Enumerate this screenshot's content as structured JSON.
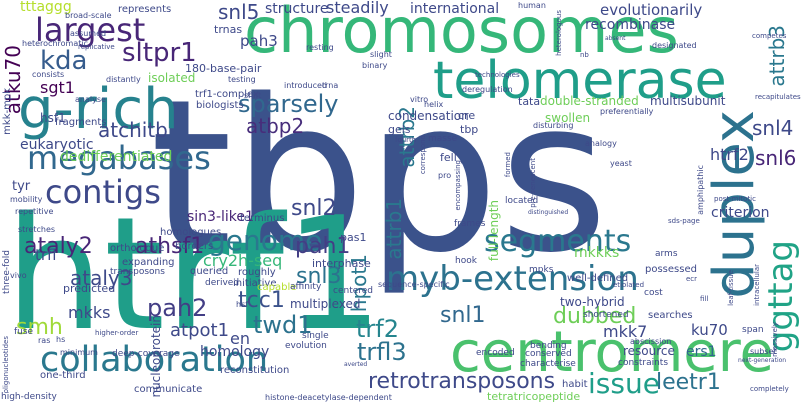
{
  "words": [
    {
      "text": "tbps",
      "color": "#3b528b",
      "orientation": "horizontal"
    },
    {
      "text": "htrf1",
      "color": "#1f9e89",
      "orientation": "horizontal"
    },
    {
      "text": "chromosomes",
      "color": "#35b779",
      "orientation": "horizontal"
    },
    {
      "text": "telomerase",
      "color": "#1f9e89",
      "orientation": "horizontal"
    },
    {
      "text": "g-rich",
      "color": "#26828e",
      "orientation": "horizontal"
    },
    {
      "text": "centromere",
      "color": "#4ac16d",
      "orientation": "horizontal"
    },
    {
      "text": "duplex",
      "color": "#2c728e",
      "orientation": "vertical"
    },
    {
      "text": "collaboration",
      "color": "#2a788e",
      "orientation": "horizontal"
    },
    {
      "text": "megabases",
      "color": "#31688e",
      "orientation": "horizontal"
    },
    {
      "text": "myb-extension",
      "color": "#2c728e",
      "orientation": "horizontal"
    },
    {
      "text": "contigs",
      "color": "#3e4989",
      "orientation": "horizontal"
    },
    {
      "text": "segments",
      "color": "#2a788e",
      "orientation": "horizontal"
    },
    {
      "text": "largest",
      "color": "#482677",
      "orientation": "horizontal"
    },
    {
      "text": "genome",
      "color": "#2a788e",
      "orientation": "horizontal"
    },
    {
      "text": "retrotransposons",
      "color": "#3e4989",
      "orientation": "horizontal"
    },
    {
      "text": "issue",
      "color": "#1f9e89",
      "orientation": "horizontal"
    },
    {
      "text": "ggttag",
      "color": "#20a386",
      "orientation": "vertical"
    },
    {
      "text": "sparsely",
      "color": "#31688e",
      "orientation": "horizontal"
    },
    {
      "text": "sltpr1",
      "color": "#482677",
      "orientation": "horizontal"
    },
    {
      "text": "kda",
      "color": "#365c8d",
      "orientation": "horizontal"
    },
    {
      "text": "atchitb",
      "color": "#3e4989",
      "orientation": "horizontal"
    },
    {
      "text": "ataly2",
      "color": "#482677",
      "orientation": "horizontal"
    },
    {
      "text": "athsf1",
      "color": "#482677",
      "orientation": "horizontal"
    },
    {
      "text": "ataly3",
      "color": "#3e4989",
      "orientation": "horizontal"
    },
    {
      "text": "pah1",
      "color": "#433e85",
      "orientation": "horizontal"
    },
    {
      "text": "pah2",
      "color": "#433e85",
      "orientation": "horizontal"
    },
    {
      "text": "tcc1",
      "color": "#3b528b",
      "orientation": "horizontal"
    },
    {
      "text": "twd1",
      "color": "#2c728e",
      "orientation": "horizontal"
    },
    {
      "text": "trf2",
      "color": "#25858e",
      "orientation": "horizontal"
    },
    {
      "text": "trfl3",
      "color": "#2c728e",
      "orientation": "horizontal"
    },
    {
      "text": "snl1",
      "color": "#31688e",
      "orientation": "horizontal"
    },
    {
      "text": "snl2",
      "color": "#3e4989",
      "orientation": "horizontal"
    },
    {
      "text": "snl3",
      "color": "#2c728e",
      "orientation": "horizontal"
    },
    {
      "text": "snl4",
      "color": "#3e4989",
      "orientation": "horizontal"
    },
    {
      "text": "snl5",
      "color": "#3e4989",
      "orientation": "horizontal"
    },
    {
      "text": "snl6",
      "color": "#482677",
      "orientation": "horizontal"
    },
    {
      "text": "dubbed",
      "color": "#6ece58",
      "orientation": "horizontal"
    },
    {
      "text": "leetr1",
      "color": "#2c728e",
      "orientation": "horizontal"
    },
    {
      "text": "smh",
      "color": "#a0da39",
      "orientation": "horizontal"
    },
    {
      "text": "atbp2",
      "color": "#472d7b",
      "orientation": "horizontal"
    },
    {
      "text": "attrb1",
      "color": "#2a788e",
      "orientation": "vertical"
    },
    {
      "text": "attrb2",
      "color": "#2a788e",
      "orientation": "vertical"
    },
    {
      "text": "attrb3",
      "color": "#2a788e",
      "orientation": "vertical"
    },
    {
      "text": "atku70",
      "color": "#440154",
      "orientation": "vertical"
    },
    {
      "text": "hpot1",
      "color": "#2a788e",
      "orientation": "vertical"
    },
    {
      "text": "atpot1",
      "color": "#3e4989",
      "orientation": "horizontal"
    },
    {
      "text": "en",
      "color": "#3e4989",
      "orientation": "horizontal"
    },
    {
      "text": "mkks",
      "color": "#3e4989",
      "orientation": "horizontal"
    },
    {
      "text": "mkkks",
      "color": "#6ece58",
      "orientation": "horizontal"
    },
    {
      "text": "htrf2",
      "color": "#3e4989",
      "orientation": "horizontal"
    },
    {
      "text": "mkk7",
      "color": "#3e4989",
      "orientation": "horizontal"
    },
    {
      "text": "ku70",
      "color": "#3e4989",
      "orientation": "horizontal"
    },
    {
      "text": "ers1",
      "color": "#31688e",
      "orientation": "horizontal"
    },
    {
      "text": "cry2h-seq",
      "color": "#35b779",
      "orientation": "horizontal"
    },
    {
      "text": "sgt1",
      "color": "#440154",
      "orientation": "horizontal"
    },
    {
      "text": "pah3",
      "color": "#3e4989",
      "orientation": "horizontal"
    },
    {
      "text": "trfl",
      "color": "#3e4989",
      "orientation": "horizontal"
    },
    {
      "text": "tyr",
      "color": "#3e4989",
      "orientation": "horizontal"
    },
    {
      "text": "hsf1",
      "color": "#3e4989",
      "orientation": "horizontal"
    },
    {
      "text": "homology",
      "color": "#3e4989",
      "orientation": "horizontal"
    },
    {
      "text": "structure",
      "color": "#3e4989",
      "orientation": "horizontal"
    },
    {
      "text": "steadily",
      "color": "#3e4989",
      "orientation": "horizontal"
    },
    {
      "text": "international",
      "color": "#3e4989",
      "orientation": "horizontal"
    },
    {
      "text": "recombinase",
      "color": "#3e4989",
      "orientation": "horizontal"
    },
    {
      "text": "evolutionarily",
      "color": "#3e4989",
      "orientation": "horizontal"
    },
    {
      "text": "tttaggg",
      "color": "#b5de2b",
      "orientation": "horizontal"
    },
    {
      "text": "eukaryotic",
      "color": "#3e4989",
      "orientation": "horizontal"
    },
    {
      "text": "condensation",
      "color": "#3e4989",
      "orientation": "horizontal"
    },
    {
      "text": "multisubunit",
      "color": "#3e4989",
      "orientation": "horizontal"
    },
    {
      "text": "double-stranded",
      "color": "#6ece58",
      "orientation": "horizontal"
    },
    {
      "text": "dedifferentiated",
      "color": "#6ece58",
      "orientation": "horizontal"
    },
    {
      "text": "sin3-like1",
      "color": "#482677",
      "orientation": "horizontal"
    },
    {
      "text": "nucleoprotein",
      "color": "#3e4989",
      "orientation": "vertical"
    },
    {
      "text": "multiplexed",
      "color": "#3e4989",
      "orientation": "horizontal"
    },
    {
      "text": "two-hybrid",
      "color": "#3e4989",
      "orientation": "horizontal"
    },
    {
      "text": "full-length",
      "color": "#6ece58",
      "orientation": "vertical"
    },
    {
      "text": "swollen",
      "color": "#6ece58",
      "orientation": "horizontal"
    },
    {
      "text": "criterion",
      "color": "#3e4989",
      "orientation": "horizontal"
    },
    {
      "text": "tetratricopeptide",
      "color": "#6ece58",
      "orientation": "horizontal"
    },
    {
      "text": "resource",
      "color": "#3e4989",
      "orientation": "horizontal"
    },
    {
      "text": "one-third",
      "color": "#3e4989",
      "orientation": "horizontal"
    },
    {
      "text": "communicate",
      "color": "#3e4989",
      "orientation": "horizontal"
    },
    {
      "text": "high-density",
      "color": "#3e4989",
      "orientation": "horizontal"
    },
    {
      "text": "histone-deacetylase-dependent",
      "color": "#3e4989",
      "orientation": "horizontal"
    },
    {
      "text": "reconstitution",
      "color": "#3e4989",
      "orientation": "horizontal"
    },
    {
      "text": "180-base-pair",
      "color": "#3e4989",
      "orientation": "horizontal"
    },
    {
      "text": "isolated",
      "color": "#6ece58",
      "orientation": "horizontal"
    },
    {
      "text": "broad-scale",
      "color": "#3e4989",
      "orientation": "horizontal"
    },
    {
      "text": "represents",
      "color": "#3e4989",
      "orientation": "horizontal"
    },
    {
      "text": "trnas",
      "color": "#3e4989",
      "orientation": "horizontal"
    },
    {
      "text": "fragments",
      "color": "#3e4989",
      "orientation": "horizontal"
    },
    {
      "text": "mkk-mpk",
      "color": "#3e4989",
      "orientation": "vertical"
    },
    {
      "text": "expanding",
      "color": "#3e4989",
      "orientation": "horizontal"
    },
    {
      "text": "transposons",
      "color": "#3e4989",
      "orientation": "horizontal"
    },
    {
      "text": "homologues",
      "color": "#3e4989",
      "orientation": "horizontal"
    },
    {
      "text": "orthologue",
      "color": "#3e4989",
      "orientation": "horizontal"
    },
    {
      "text": "predicted",
      "color": "#3e4989",
      "orientation": "horizontal"
    },
    {
      "text": "roughly",
      "color": "#3e4989",
      "orientation": "horizontal"
    },
    {
      "text": "initiative",
      "color": "#3e4989",
      "orientation": "horizontal"
    },
    {
      "text": "terminus",
      "color": "#3e4989",
      "orientation": "horizontal"
    },
    {
      "text": "borders",
      "color": "#3e4989",
      "orientation": "horizontal"
    },
    {
      "text": "trf1-complex",
      "color": "#3e4989",
      "orientation": "horizontal"
    },
    {
      "text": "biologists",
      "color": "#3e4989",
      "orientation": "horizontal"
    },
    {
      "text": "interphase",
      "color": "#3e4989",
      "orientation": "horizontal"
    },
    {
      "text": "pas1",
      "color": "#3e4989",
      "orientation": "horizontal"
    },
    {
      "text": "capable",
      "color": "#b5de2b",
      "orientation": "horizontal"
    },
    {
      "text": "queried",
      "color": "#3e4989",
      "orientation": "horizontal"
    },
    {
      "text": "derived",
      "color": "#3e4989",
      "orientation": "horizontal"
    },
    {
      "text": "affinity",
      "color": "#3e4989",
      "orientation": "horizontal"
    },
    {
      "text": "well-defined",
      "color": "#3e4989",
      "orientation": "horizontal"
    },
    {
      "text": "mpks",
      "color": "#3e4989",
      "orientation": "horizontal"
    },
    {
      "text": "possessed",
      "color": "#3e4989",
      "orientation": "horizontal"
    },
    {
      "text": "searches",
      "color": "#3e4989",
      "orientation": "horizontal"
    },
    {
      "text": "shortened",
      "color": "#3e4989",
      "orientation": "horizontal"
    },
    {
      "text": "centered",
      "color": "#3e4989",
      "orientation": "horizontal"
    },
    {
      "text": "sequence-specific",
      "color": "#3e4989",
      "orientation": "horizontal"
    },
    {
      "text": "encoded",
      "color": "#3e4989",
      "orientation": "horizontal"
    },
    {
      "text": "bending",
      "color": "#3e4989",
      "orientation": "horizontal"
    },
    {
      "text": "conserved",
      "color": "#3e4989",
      "orientation": "horizontal"
    },
    {
      "text": "characterise",
      "color": "#3e4989",
      "orientation": "horizontal"
    },
    {
      "text": "constraints",
      "color": "#3e4989",
      "orientation": "horizontal"
    },
    {
      "text": "habit",
      "color": "#3e4989",
      "orientation": "horizontal"
    },
    {
      "text": "abscission",
      "color": "#3e4989",
      "orientation": "horizontal"
    },
    {
      "text": "subset",
      "color": "#3e4989",
      "orientation": "horizontal"
    },
    {
      "text": "deep-coverage",
      "color": "#3e4989",
      "orientation": "horizontal"
    },
    {
      "text": "evolution",
      "color": "#3e4989",
      "orientation": "horizontal"
    },
    {
      "text": "single",
      "color": "#3e4989",
      "orientation": "horizontal"
    },
    {
      "text": "gels",
      "color": "#3e4989",
      "orientation": "horizontal"
    },
    {
      "text": "fell",
      "color": "#3e4989",
      "orientation": "horizontal"
    },
    {
      "text": "tbp",
      "color": "#3e4989",
      "orientation": "horizontal"
    },
    {
      "text": "cre",
      "color": "#3e4989",
      "orientation": "horizontal"
    },
    {
      "text": "tata",
      "color": "#3e4989",
      "orientation": "horizontal"
    },
    {
      "text": "masse",
      "color": "#3e4989",
      "orientation": "horizontal"
    },
    {
      "text": "frames",
      "color": "#3e4989",
      "orientation": "horizontal"
    },
    {
      "text": "hook",
      "color": "#3e4989",
      "orientation": "horizontal"
    },
    {
      "text": "located",
      "color": "#3e4989",
      "orientation": "horizontal"
    },
    {
      "text": "arms",
      "color": "#3e4989",
      "orientation": "horizontal"
    },
    {
      "text": "cost",
      "color": "#3e4989",
      "orientation": "horizontal"
    },
    {
      "text": "span",
      "color": "#3e4989",
      "orientation": "horizontal"
    },
    {
      "text": "fuse",
      "color": "#3e4989",
      "orientation": "horizontal"
    },
    {
      "text": "mobility",
      "color": "#3e4989",
      "orientation": "horizontal"
    },
    {
      "text": "repetitive",
      "color": "#3e4989",
      "orientation": "horizontal"
    },
    {
      "text": "stretches",
      "color": "#3e4989",
      "orientation": "horizontal"
    },
    {
      "text": "three-fold",
      "color": "#3e4989",
      "orientation": "vertical"
    },
    {
      "text": "minimum",
      "color": "#3e4989",
      "orientation": "horizontal"
    },
    {
      "text": "heterochromatic",
      "color": "#3e4989",
      "orientation": "horizontal"
    },
    {
      "text": "assumed",
      "color": "#3e4989",
      "orientation": "horizontal"
    },
    {
      "text": "replicative",
      "color": "#3e4989",
      "orientation": "horizontal"
    },
    {
      "text": "consists",
      "color": "#3e4989",
      "orientation": "horizontal"
    },
    {
      "text": "distantly",
      "color": "#3e4989",
      "orientation": "horizontal"
    },
    {
      "text": "analyse",
      "color": "#3e4989",
      "orientation": "horizontal"
    },
    {
      "text": "testing",
      "color": "#3e4989",
      "orientation": "horizontal"
    },
    {
      "text": "shift",
      "color": "#3e4989",
      "orientation": "horizontal"
    },
    {
      "text": "introduced",
      "color": "#3e4989",
      "orientation": "horizontal"
    },
    {
      "text": "trna",
      "color": "#3e4989",
      "orientation": "horizontal"
    },
    {
      "text": "resting",
      "color": "#3e4989",
      "orientation": "horizontal"
    },
    {
      "text": "vitro",
      "color": "#3e4989",
      "orientation": "horizontal"
    },
    {
      "text": "binary",
      "color": "#3e4989",
      "orientation": "horizontal"
    },
    {
      "text": "slight",
      "color": "#3e4989",
      "orientation": "horizontal"
    },
    {
      "text": "deregulation",
      "color": "#3e4989",
      "orientation": "horizontal"
    },
    {
      "text": "helix",
      "color": "#3e4989",
      "orientation": "horizontal"
    },
    {
      "text": "technologies",
      "color": "#3e4989",
      "orientation": "horizontal"
    },
    {
      "text": "human",
      "color": "#3e4989",
      "orientation": "horizontal"
    },
    {
      "text": "heterologous",
      "color": "#3e4989",
      "orientation": "vertical"
    },
    {
      "text": "designated",
      "color": "#3e4989",
      "orientation": "horizontal"
    },
    {
      "text": "competes",
      "color": "#3e4989",
      "orientation": "horizontal"
    },
    {
      "text": "recapitulates",
      "color": "#3e4989",
      "orientation": "horizontal"
    },
    {
      "text": "preferentially",
      "color": "#3e4989",
      "orientation": "horizontal"
    },
    {
      "text": "analogy",
      "color": "#3e4989",
      "orientation": "horizontal"
    },
    {
      "text": "amphipathic",
      "color": "#3e4989",
      "orientation": "vertical"
    },
    {
      "text": "post-mitotic",
      "color": "#3e4989",
      "orientation": "horizontal"
    },
    {
      "text": "yeast",
      "color": "#3e4989",
      "orientation": "horizontal"
    },
    {
      "text": "sds-page",
      "color": "#3e4989",
      "orientation": "horizontal"
    },
    {
      "text": "disturbing",
      "color": "#3e4989",
      "orientation": "horizontal"
    },
    {
      "text": "formed",
      "color": "#3e4989",
      "orientation": "vertical"
    },
    {
      "text": "fourth",
      "color": "#3e4989",
      "orientation": "horizontal"
    },
    {
      "text": "correspond",
      "color": "#3e4989",
      "orientation": "vertical"
    },
    {
      "text": "encompassing",
      "color": "#3e4989",
      "orientation": "vertical"
    },
    {
      "text": "pro",
      "color": "#3e4989",
      "orientation": "horizontal"
    },
    {
      "text": "pre-senescent",
      "color": "#3e4989",
      "orientation": "vertical"
    },
    {
      "text": "etiolated",
      "color": "#3e4989",
      "orientation": "horizontal"
    },
    {
      "text": "massively",
      "color": "#3e4989",
      "orientation": "vertical"
    },
    {
      "text": "next-generation",
      "color": "#3e4989",
      "orientation": "horizontal"
    },
    {
      "text": "intracellular",
      "color": "#3e4989",
      "orientation": "vertical"
    },
    {
      "text": "leaf-tissue",
      "color": "#3e4989",
      "orientation": "vertical"
    },
    {
      "text": "completely",
      "color": "#3e4989",
      "orientation": "horizontal"
    },
    {
      "text": "oligonucleotides",
      "color": "#3e4989",
      "orientation": "vertical"
    },
    {
      "text": "higher-order",
      "color": "#3e4989",
      "orientation": "horizontal"
    },
    {
      "text": "vivo",
      "color": "#3e4989",
      "orientation": "horizontal"
    },
    {
      "text": "ras",
      "color": "#3e4989",
      "orientation": "horizontal"
    },
    {
      "text": "hs",
      "color": "#3e4989",
      "orientation": "horizontal"
    },
    {
      "text": "hsf",
      "color": "#3e4989",
      "orientation": "horizontal"
    },
    {
      "text": "nb",
      "color": "#3e4989",
      "orientation": "horizontal"
    },
    {
      "text": "fill",
      "color": "#3e4989",
      "orientation": "horizontal"
    },
    {
      "text": "averted",
      "color": "#3e4989",
      "orientation": "horizontal"
    },
    {
      "text": "ecr",
      "color": "#3e4989",
      "orientation": "horizontal"
    },
    {
      "text": "absent",
      "color": "#3e4989",
      "orientation": "horizontal"
    },
    {
      "text": "distinguished",
      "color": "#3e4989",
      "orientation": "horizontal"
    }
  ]
}
